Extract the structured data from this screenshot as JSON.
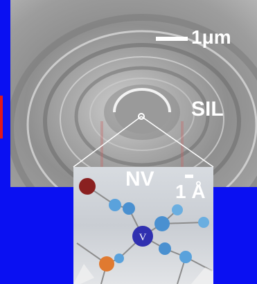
{
  "sem_image": {
    "description_icon": "sem-lens-icon"
  },
  "labels": {
    "scale_um": "1μm",
    "sil": "SIL",
    "nv": "NV",
    "scale_angstrom": "1 Å",
    "v_atom": "V"
  },
  "colors": {
    "background": "#0a10f2",
    "red_marker": "#e0181c",
    "atom_blue": "#4a90d0",
    "atom_red": "#8a2020",
    "atom_vacancy": "#3030b0",
    "atom_orange": "#e07a30"
  }
}
